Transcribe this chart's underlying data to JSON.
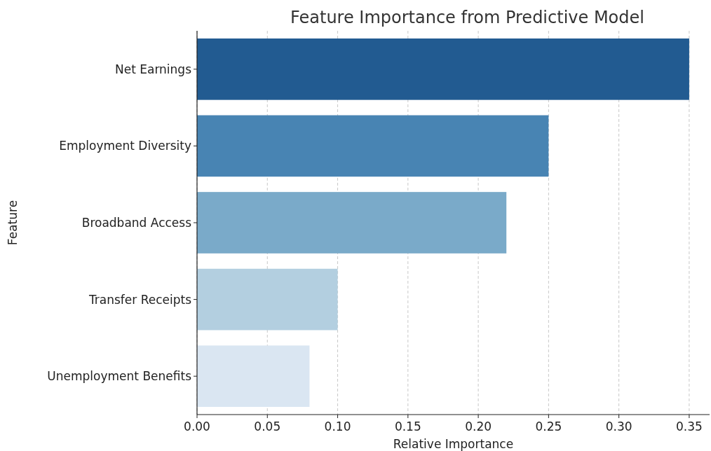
{
  "chart_data": {
    "type": "bar",
    "orientation": "horizontal",
    "title": "Feature Importance from Predictive Model",
    "xlabel": "Relative Importance",
    "ylabel": "Feature",
    "categories": [
      "Net Earnings",
      "Employment Diversity",
      "Broadband Access",
      "Transfer Receipts",
      "Unemployment Benefits"
    ],
    "values": [
      0.35,
      0.25,
      0.22,
      0.1,
      0.08
    ],
    "colors": [
      "#225b91",
      "#4884b3",
      "#7aaac9",
      "#b3cfe0",
      "#dae6f2"
    ],
    "xlim": [
      0,
      0.3645
    ],
    "xticks": [
      {
        "value": 0,
        "label": "0.00"
      },
      {
        "value": 0.05,
        "label": "0.05"
      },
      {
        "value": 0.1,
        "label": "0.10"
      },
      {
        "value": 0.15,
        "label": "0.15"
      },
      {
        "value": 0.2,
        "label": "0.20"
      },
      {
        "value": 0.25,
        "label": "0.25"
      },
      {
        "value": 0.3,
        "label": "0.30"
      },
      {
        "value": 0.35,
        "label": "0.35"
      }
    ],
    "grid": "x"
  }
}
